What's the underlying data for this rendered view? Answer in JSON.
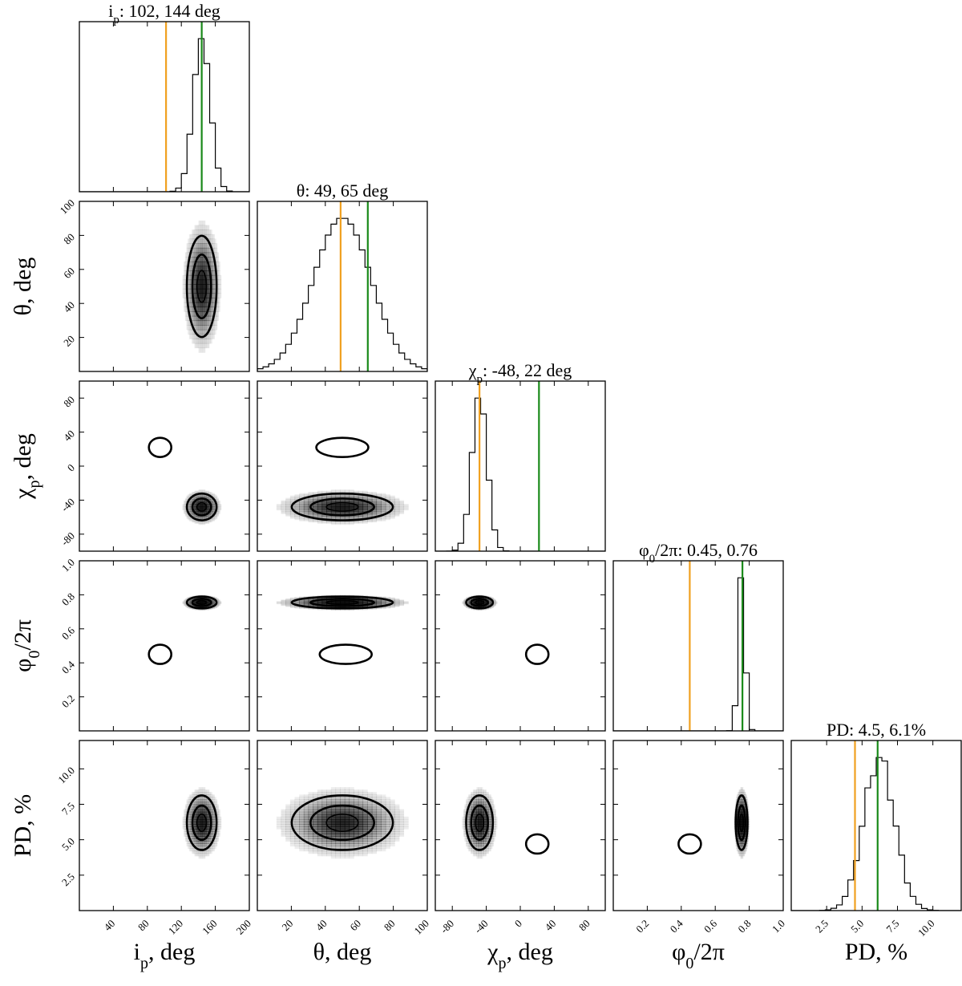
{
  "chart_data": {
    "type": "corner",
    "parameters": [
      {
        "key": "ip",
        "title": "i_p: 102, 144 deg",
        "xlabel": "i_p, deg",
        "ylabel": "",
        "range": [
          0,
          200
        ],
        "ticks": [
          40,
          80,
          120,
          160,
          200
        ],
        "mean": 144,
        "sigma": 10,
        "lower_line": 102,
        "upper_line": 144
      },
      {
        "key": "theta",
        "title": "θ: 49, 65 deg",
        "xlabel": "θ, deg",
        "ylabel": "θ, deg",
        "range": [
          0,
          100
        ],
        "ticks": [
          20,
          40,
          60,
          80,
          100
        ],
        "yticks": [
          20,
          40,
          60,
          80,
          100
        ],
        "mean": 50,
        "sigma": 17,
        "lower_line": 49,
        "upper_line": 65
      },
      {
        "key": "chi",
        "title": "χ_p: -48, 22 deg",
        "xlabel": "χ_p, deg",
        "ylabel": "χ_p, deg",
        "range": [
          -100,
          100
        ],
        "ticks": [
          -80,
          -40,
          0,
          40,
          80
        ],
        "yticks": [
          -80,
          -40,
          0,
          40,
          80
        ],
        "mean": -48,
        "sigma": 9,
        "lower_line": -48,
        "upper_line": 22
      },
      {
        "key": "phi",
        "title": "φ_0/2π: 0.45, 0.76",
        "xlabel": "φ_0/2π",
        "ylabel": "φ_0/2π",
        "range": [
          0,
          1
        ],
        "ticks": [
          0.2,
          0.4,
          0.6,
          0.8,
          1.0
        ],
        "yticks": [
          0.2,
          0.4,
          0.6,
          0.8,
          1.0
        ],
        "mean": 0.755,
        "sigma": 0.02,
        "lower_line": 0.45,
        "upper_line": 0.76
      },
      {
        "key": "pd",
        "title": "PD: 4.5, 6.1%",
        "xlabel": "PD, %",
        "ylabel": "PD, %",
        "range": [
          0,
          12
        ],
        "ticks": [
          2.5,
          5.0,
          7.5,
          10.0
        ],
        "yticks": [
          2.5,
          5.0,
          7.5,
          10.0
        ],
        "mean": 6.2,
        "sigma": 1.1,
        "lower_line": 4.5,
        "upper_line": 6.1
      }
    ],
    "colors": {
      "lower_line": "#f0a020",
      "upper_line": "#1a8a1a",
      "contour": "#000000",
      "density": "#000000"
    },
    "secondary_modes": {
      "ip_chi": {
        "x": 95,
        "y": 22
      },
      "theta_chi": {
        "x": 50,
        "y": 22
      },
      "ip_phi": {
        "x": 95,
        "y": 0.45
      },
      "theta_phi": {
        "x": 52,
        "y": 0.45
      },
      "chi_phi": {
        "x": 20,
        "y": 0.45
      },
      "chi_pd": {
        "x": 20,
        "y": 4.7
      },
      "phi_pd": {
        "x": 0.45,
        "y": 4.7
      }
    }
  }
}
